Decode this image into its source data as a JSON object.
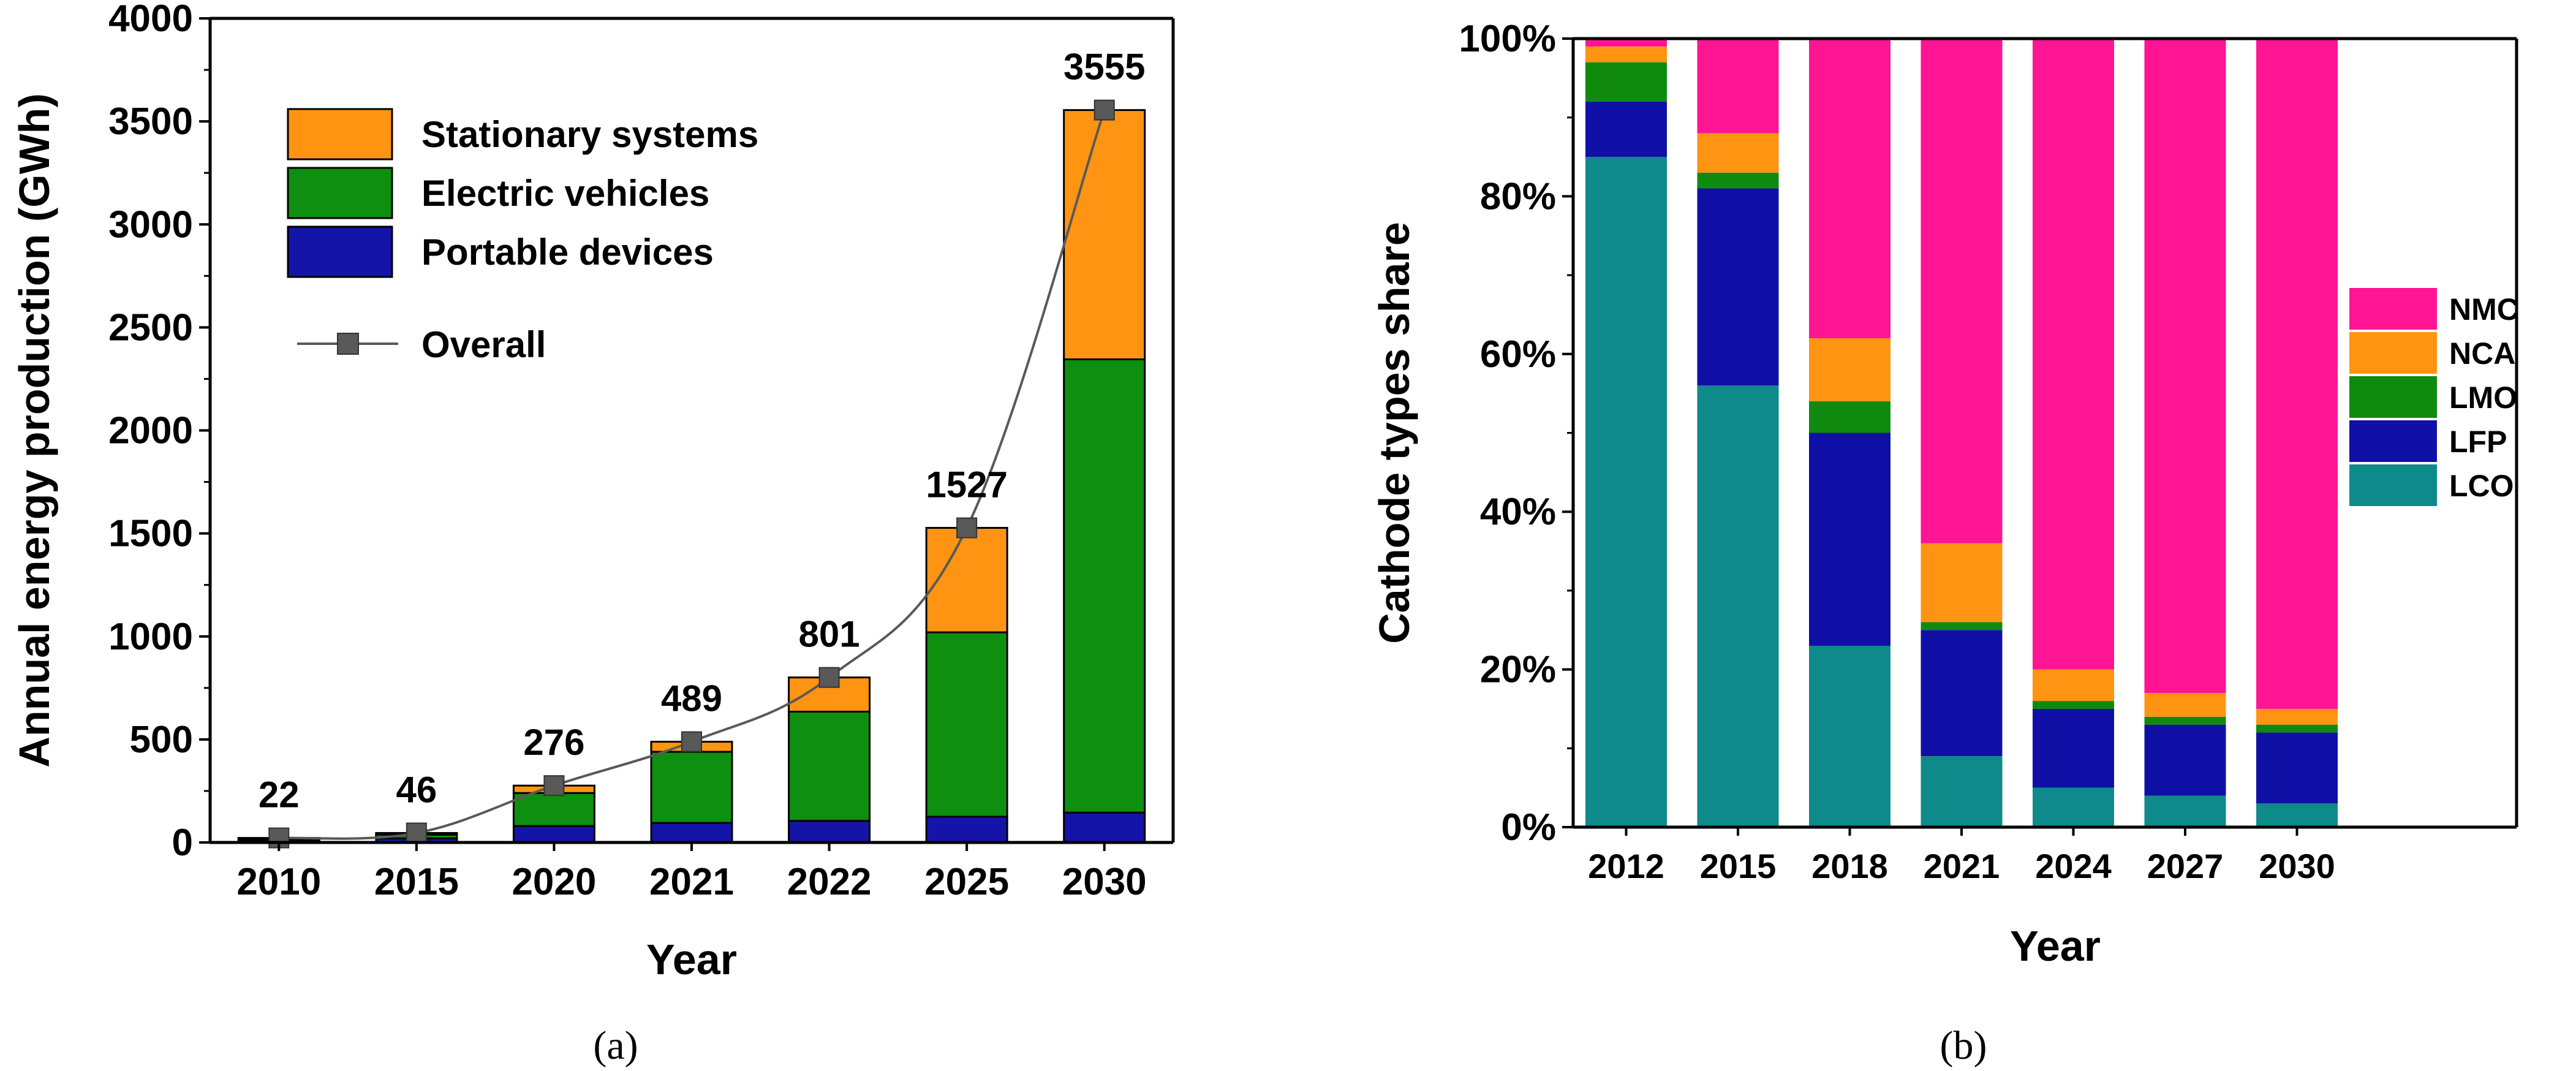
{
  "chart_data": [
    {
      "id": "a",
      "type": "bar",
      "stacked": true,
      "caption": "(a)",
      "xlabel": "Year",
      "ylabel": "Annual energy production (GWh)",
      "ylim": [
        0,
        4000
      ],
      "yticks": [
        0,
        500,
        1000,
        1500,
        2000,
        2500,
        3000,
        3500,
        4000
      ],
      "categories": [
        "2010",
        "2015",
        "2020",
        "2021",
        "2022",
        "2025",
        "2030"
      ],
      "series": [
        {
          "name": "Portable devices",
          "color": "#1414a8",
          "values": [
            12,
            20,
            80,
            95,
            105,
            125,
            145
          ]
        },
        {
          "name": "Electric vehicles",
          "color": "#0f8f0f",
          "values": [
            6,
            18,
            160,
            345,
            530,
            895,
            2200
          ]
        },
        {
          "name": "Stationary systems",
          "color": "#ff9412",
          "values": [
            4,
            8,
            36,
            49,
            166,
            507,
            1210
          ]
        }
      ],
      "overall": {
        "name": "Overall",
        "color": "#595959",
        "values": [
          22,
          46,
          276,
          489,
          801,
          1527,
          3555
        ],
        "labels": [
          "22",
          "46",
          "276",
          "489",
          "801",
          "1527",
          "3555"
        ]
      },
      "legend_position": "top-left"
    },
    {
      "id": "b",
      "type": "bar",
      "stacked": true,
      "percent": true,
      "caption": "(b)",
      "xlabel": "Year",
      "ylabel": "Cathode types share",
      "ylim": [
        0,
        100
      ],
      "yticks": [
        0,
        20,
        40,
        60,
        80,
        100
      ],
      "ytick_labels": [
        "0%",
        "20%",
        "40%",
        "60%",
        "80%",
        "100%"
      ],
      "categories": [
        "2012",
        "2015",
        "2018",
        "2021",
        "2024",
        "2027",
        "2030"
      ],
      "series": [
        {
          "name": "LCO",
          "color": "#0f8a8a",
          "values": [
            85,
            56,
            23,
            9,
            5,
            4,
            3
          ]
        },
        {
          "name": "LFP",
          "color": "#1010a6",
          "values": [
            7,
            25,
            27,
            16,
            10,
            9,
            9
          ]
        },
        {
          "name": "LMO",
          "color": "#0f8a0f",
          "values": [
            5,
            2,
            4,
            1,
            1,
            1,
            1
          ]
        },
        {
          "name": "NCA",
          "color": "#ff9412",
          "values": [
            2,
            5,
            8,
            10,
            4,
            3,
            2
          ]
        },
        {
          "name": "NMC",
          "color": "#ff1493",
          "values": [
            1,
            12,
            38,
            64,
            80,
            83,
            85
          ]
        }
      ],
      "legend_position": "right"
    }
  ]
}
